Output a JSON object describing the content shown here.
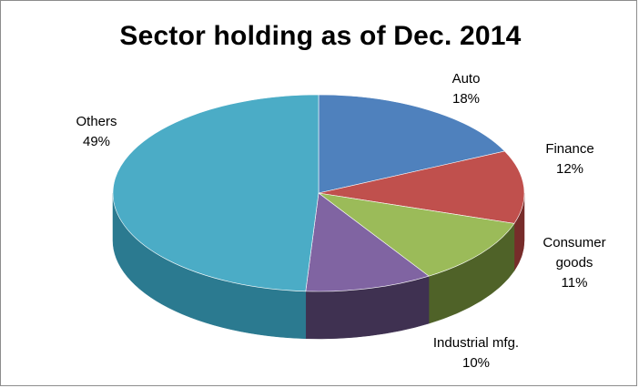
{
  "chart_data": {
    "type": "pie",
    "title": "Sector holding as of Dec. 2014",
    "slices": [
      {
        "label": [
          "Auto"
        ],
        "percent_label": "18%",
        "value": 18,
        "color": "#4f81bd",
        "side": "#2c4d75"
      },
      {
        "label": [
          "Finance"
        ],
        "percent_label": "12%",
        "value": 12,
        "color": "#c0504d",
        "side": "#772c2a"
      },
      {
        "label": [
          "Consumer",
          "goods"
        ],
        "percent_label": "11%",
        "value": 11,
        "color": "#9bbb59",
        "side": "#4f6228"
      },
      {
        "label": [
          "Industrial mfg."
        ],
        "percent_label": "10%",
        "value": 10,
        "color": "#8064a2",
        "side": "#3f3151"
      },
      {
        "label": [
          "Others"
        ],
        "percent_label": "49%",
        "value": 49,
        "color": "#4bacc6",
        "side": "#2b7a90"
      }
    ]
  }
}
